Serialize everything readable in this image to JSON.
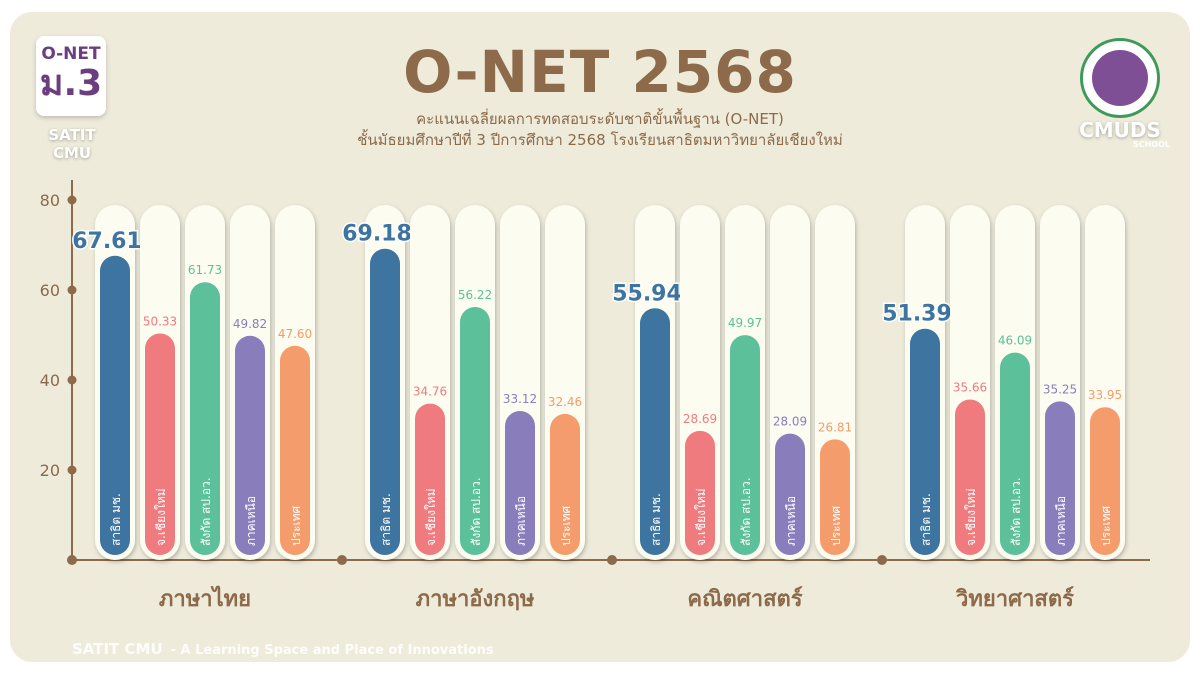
{
  "badge": {
    "line1": "O-NET",
    "line2": "ม.3",
    "sub": "SATIT CMU"
  },
  "header": {
    "title": "O-NET 2568",
    "subtitle1": "คะแนนเฉลี่ยผลการทดสอบระดับชาติขั้นพื้นฐาน (O-NET)",
    "subtitle2": "ชั้นมัธยมศึกษาปีที่ 3  ปีการศึกษา 2568 โรงเรียนสาธิตมหาวิทยาลัยเชียงใหม่"
  },
  "logo": {
    "text": "CMUDS",
    "sub": "SCHOOL"
  },
  "footer": {
    "brand": "SATIT CMU",
    "tagline": "- A Learning Space and Place of Innovations"
  },
  "chart_data": {
    "type": "bar",
    "categories": [
      "ภาษาไทย",
      "ภาษาอังกฤษ",
      "คณิตศาสตร์",
      "วิทยาศาสตร์"
    ],
    "yticks": [
      20,
      40,
      60,
      80
    ],
    "ylim": [
      0,
      80
    ],
    "grid": false,
    "series": [
      {
        "name": "สาธิต มช.",
        "color": "#3D75A0",
        "values": [
          67.61,
          69.18,
          55.94,
          51.39
        ]
      },
      {
        "name": "จ.เชียงใหม่",
        "color": "#EF7B7E",
        "values": [
          50.33,
          34.76,
          28.69,
          35.66
        ]
      },
      {
        "name": "สังกัด สป.อว.",
        "color": "#5CC09A",
        "values": [
          61.73,
          56.22,
          49.97,
          46.09
        ]
      },
      {
        "name": "ภาคเหนือ",
        "color": "#8A7DBC",
        "values": [
          49.82,
          33.12,
          28.09,
          35.25
        ]
      },
      {
        "name": "ประเทศ",
        "color": "#F59C6C",
        "values": [
          47.6,
          32.46,
          26.81,
          33.95
        ]
      }
    ],
    "value_labels": [
      [
        "67.61",
        "50.33",
        "61.73",
        "49.82",
        "47.60"
      ],
      [
        "69.18",
        "34.76",
        "56.22",
        "33.12",
        "32.46"
      ],
      [
        "55.94",
        "28.69",
        "49.97",
        "28.09",
        "26.81"
      ],
      [
        "51.39",
        "35.66",
        "46.09",
        "35.25",
        "33.95"
      ]
    ],
    "axis_color": "#8C6A4A"
  }
}
